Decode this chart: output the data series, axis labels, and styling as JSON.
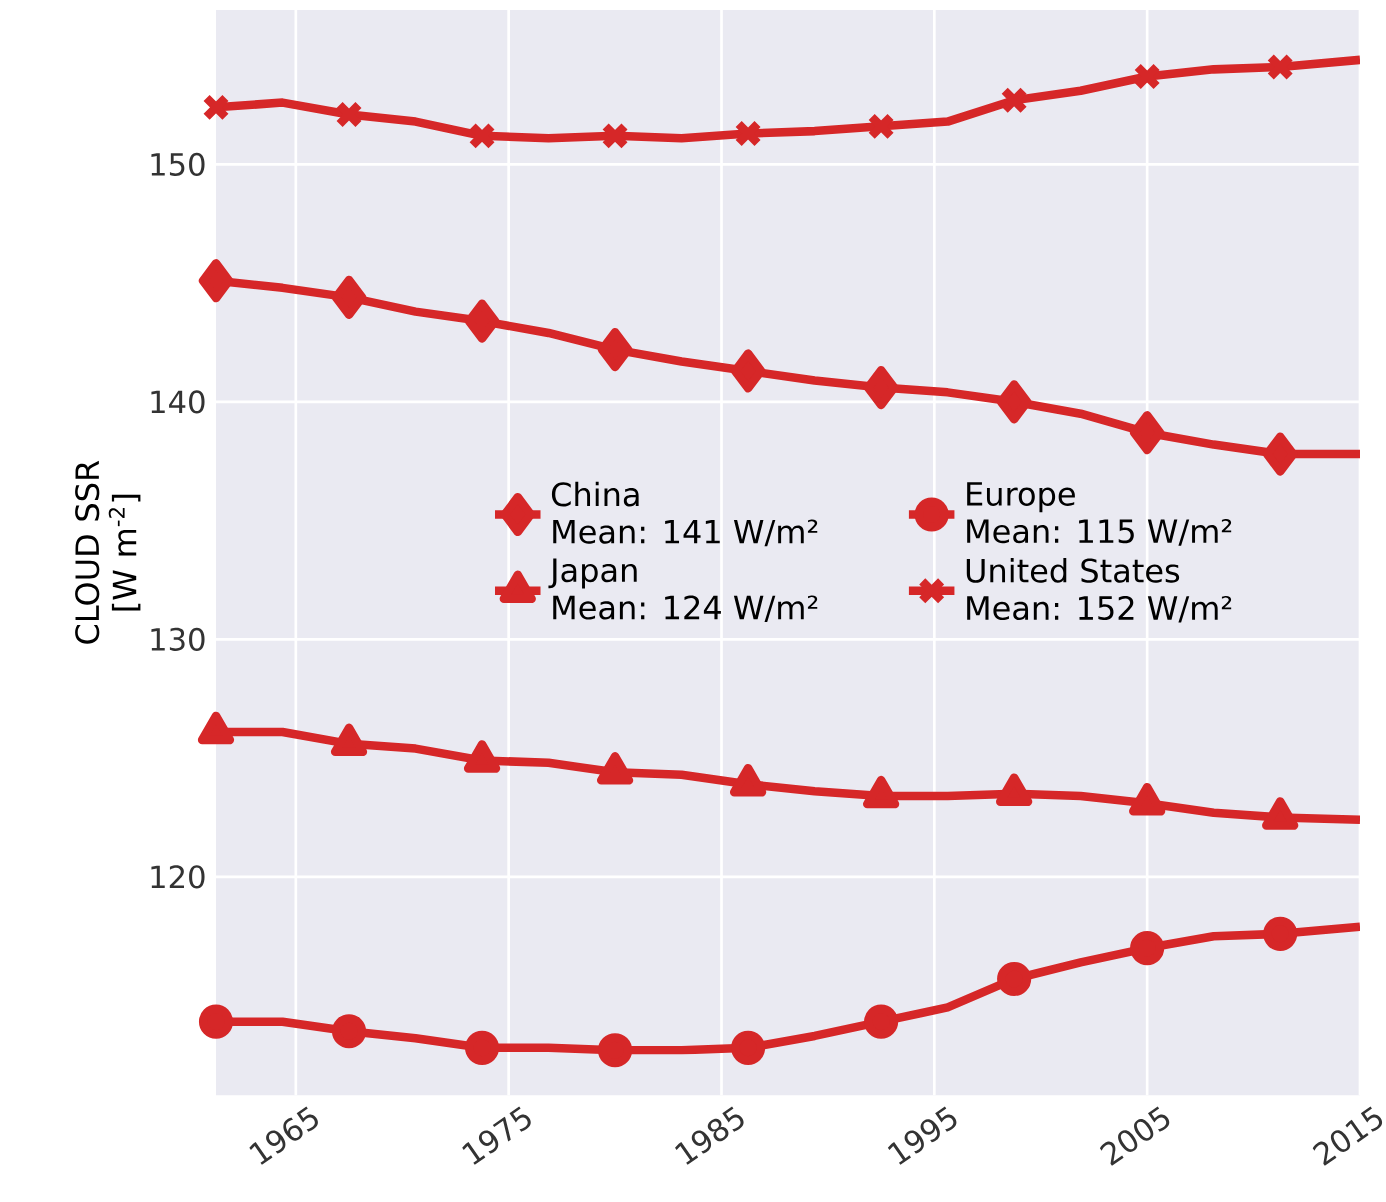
{
  "chart_data": {
    "type": "line",
    "ylabel": "CLOUD SSR [W m$^{-2}$]",
    "x": [
      1961.25,
      1964.375,
      1967.5,
      1970.625,
      1973.75,
      1976.875,
      1980,
      1983.125,
      1986.25,
      1989.375,
      1992.5,
      1995.625,
      1998.75,
      2001.875,
      2005,
      2008.125,
      2011.25,
      2015
    ],
    "series": [
      {
        "name": "China\nMean: 141 W/m²",
        "color": "#d62728",
        "marker": "diamond",
        "values": [
          145.1,
          144.8,
          144.4,
          143.8,
          143.4,
          142.9,
          142.2,
          141.7,
          141.3,
          140.9,
          140.6,
          140.4,
          140.0,
          139.5,
          138.7,
          138.2,
          137.8,
          137.8
        ]
      },
      {
        "name": "Japan\nMean: 124 W/m²",
        "color": "#d62728",
        "marker": "triangle",
        "values": [
          126.1,
          126.1,
          125.6,
          125.4,
          124.9,
          124.8,
          124.4,
          124.3,
          123.9,
          123.6,
          123.4,
          123.4,
          123.5,
          123.4,
          123.1,
          122.7,
          122.5,
          122.4
        ]
      },
      {
        "name": "Europe\nMean: 115 W/m²",
        "color": "#d62728",
        "marker": "circle",
        "values": [
          113.9,
          113.9,
          113.5,
          113.2,
          112.8,
          112.8,
          112.7,
          112.7,
          112.8,
          113.3,
          113.9,
          114.5,
          115.7,
          116.4,
          117.0,
          117.5,
          117.6,
          117.9
        ]
      },
      {
        "name": "United States\nMean: 152 W/m²",
        "color": "#d62728",
        "marker": "cross",
        "values": [
          152.4,
          152.6,
          152.1,
          151.8,
          151.2,
          151.1,
          151.2,
          151.1,
          151.3,
          151.4,
          151.6,
          151.8,
          152.7,
          153.1,
          153.7,
          154.0,
          154.1,
          154.4
        ]
      }
    ],
    "xlim": [
      1961.25,
      2015
    ],
    "xticks": [
      1965,
      1975,
      1985,
      1995,
      2005,
      2015
    ],
    "ylim": [
      110.8,
      156.5
    ],
    "yticks": [
      120,
      130,
      140,
      150
    ],
    "grid": true,
    "legend": "center",
    "line_style": "solid"
  }
}
